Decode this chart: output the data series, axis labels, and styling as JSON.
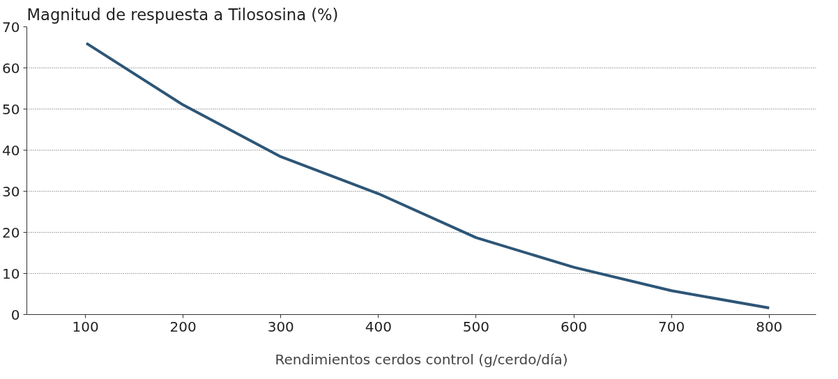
{
  "chart_data": {
    "type": "line",
    "ylabel": "Magnitud de respuesta a Tilososina (%)",
    "xlabel": "Rendimientos cerdos control (g/cerdo/día)",
    "x": [
      101,
      200,
      300,
      400,
      500,
      600,
      700,
      800
    ],
    "series": [
      {
        "color": "#2e5677",
        "values": [
          66,
          51,
          38.4,
          29.4,
          18.7,
          11.5,
          5.8,
          1.6
        ]
      }
    ],
    "xlim": [
      40,
      848
    ],
    "ylim": [
      0,
      70
    ],
    "xticks": [
      100,
      200,
      300,
      400,
      500,
      600,
      700,
      800
    ],
    "yticks": [
      0,
      10,
      20,
      30,
      40,
      50,
      60,
      70
    ],
    "grid": "y",
    "marker": "none",
    "line_style": "solid"
  }
}
